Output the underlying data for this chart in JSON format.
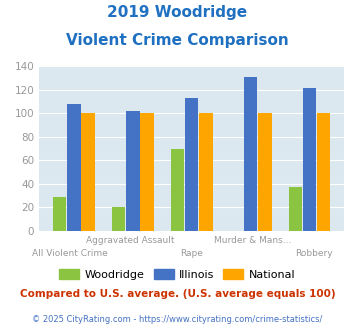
{
  "title_line1": "2019 Woodridge",
  "title_line2": "Violent Crime Comparison",
  "cat_top": [
    "",
    "Aggravated Assault",
    "",
    "Murder & Mans...",
    ""
  ],
  "cat_bot": [
    "All Violent Crime",
    "",
    "Rape",
    "",
    "Robbery"
  ],
  "woodridge": [
    29,
    20,
    70,
    0,
    37
  ],
  "illinois": [
    108,
    102,
    113,
    131,
    121
  ],
  "national": [
    100,
    100,
    100,
    100,
    100
  ],
  "woodridge_color": "#8ac440",
  "illinois_color": "#4472c4",
  "national_color": "#ffa500",
  "ylim": [
    0,
    140
  ],
  "yticks": [
    0,
    20,
    40,
    60,
    80,
    100,
    120,
    140
  ],
  "plot_bg": "#dce8f0",
  "title_color": "#1f70c1",
  "axis_label_color": "#999999",
  "legend_labels": [
    "Woodridge",
    "Illinois",
    "National"
  ],
  "footnote1": "Compared to U.S. average. (U.S. average equals 100)",
  "footnote2": "© 2025 CityRating.com - https://www.cityrating.com/crime-statistics/",
  "footnote1_color": "#cc3300",
  "footnote2_color": "#4472c4"
}
